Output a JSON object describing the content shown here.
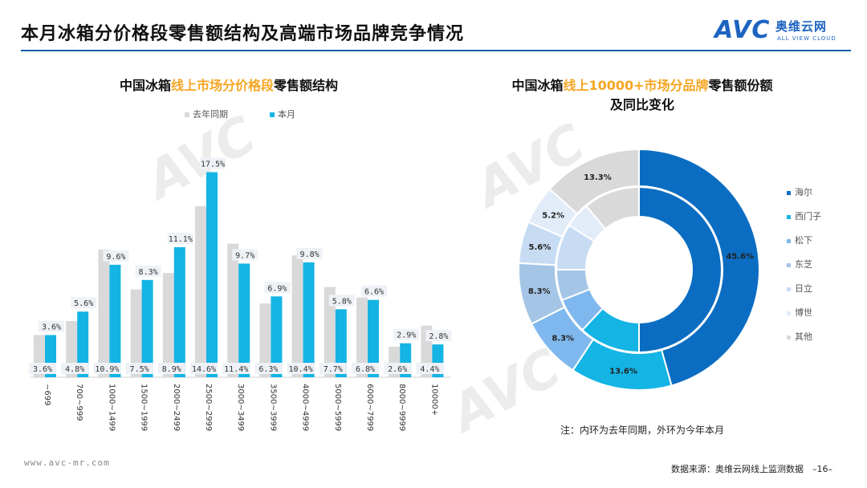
{
  "page": {
    "title": "本月冰箱分价格段零售额结构及高端市场品牌竞争情况",
    "logo_text": "AVC",
    "logo_cn": "奥维云网",
    "logo_en": "ALL VIEW CLOUD",
    "url": "www.avc-mr.com",
    "source": "数据来源：奥维云网线上监测数据　–16–",
    "note": "注：内环为去年同期，外环为今年本月"
  },
  "left_chart_title": {
    "pre": "中国冰箱",
    "hl": "线上市场分价格段",
    "post": "零售额结构"
  },
  "right_chart_title": {
    "pre": "中国冰箱",
    "hl": "线上10000+市场分品牌",
    "post": "零售额份额",
    "line2": "及同比变化"
  },
  "colors": {
    "last_year": "#d9d9d9",
    "this_month": "#14b4e5",
    "accent": "#f5a623",
    "brand_blue": "#1d64c0"
  },
  "chart_data": [
    {
      "type": "bar",
      "categories": [
        "~699",
        "700~999",
        "1000~1499",
        "1500~1999",
        "2000~2499",
        "2500~2999",
        "3000~3499",
        "3500~3999",
        "4000~4999",
        "5000~5999",
        "6000~7999",
        "8000~9999",
        "10000+"
      ],
      "series": [
        {
          "name": "去年同期",
          "values": [
            3.6,
            4.8,
            10.9,
            7.5,
            8.9,
            14.6,
            11.4,
            6.3,
            10.4,
            7.7,
            6.8,
            2.6,
            4.4
          ],
          "labels": [
            "3.6%",
            "4.8%",
            "10.9%",
            "7.5%",
            "8.9%",
            "14.6%",
            "11.4%",
            "6.3%",
            "10.4%",
            "7.7%",
            "6.8%",
            "2.6%",
            "4.4%"
          ]
        },
        {
          "name": "本月",
          "values": [
            3.6,
            5.6,
            9.6,
            8.3,
            11.1,
            17.5,
            9.7,
            6.9,
            9.8,
            5.8,
            6.6,
            2.9,
            2.8
          ],
          "labels": [
            "3.6%",
            "5.6%",
            "9.6%",
            "8.3%",
            "11.1%",
            "17.5%",
            "9.7%",
            "6.9%",
            "9.8%",
            "5.8%",
            "6.6%",
            "2.9%",
            "2.8%"
          ]
        }
      ],
      "unit": "%"
    },
    {
      "type": "pie",
      "categories": [
        "海尔",
        "西门子",
        "松下",
        "东芝",
        "日立",
        "博世",
        "其他"
      ],
      "colors": [
        "#0b6dc2",
        "#14b4e5",
        "#7fb8ee",
        "#a4c5e6",
        "#c7dcf3",
        "#e1ecf8",
        "#d9d9d9"
      ],
      "series": [
        {
          "ring": "outer",
          "values": [
            45.6,
            13.6,
            8.3,
            8.3,
            5.6,
            5.2,
            13.3
          ],
          "labels": [
            "45.6%",
            "13.6%",
            "8.3%",
            "8.3%",
            "5.6%",
            "5.2%",
            "13.3%"
          ]
        },
        {
          "ring": "inner",
          "values": [
            50.0,
            12.0,
            7.0,
            6.0,
            9.0,
            5.0,
            11.0
          ]
        }
      ]
    }
  ]
}
